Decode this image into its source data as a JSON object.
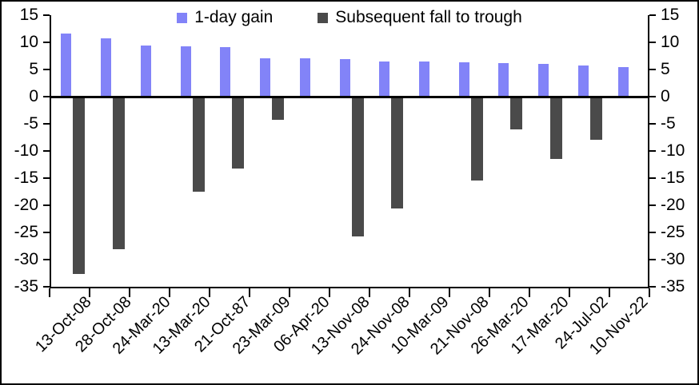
{
  "chart_data": {
    "type": "bar",
    "title": "",
    "xlabel": "",
    "ylabel": "",
    "categories": [
      "13-Oct-08",
      "28-Oct-08",
      "24-Mar-20",
      "13-Mar-20",
      "21-Oct-87",
      "23-Mar-09",
      "06-Apr-20",
      "13-Nov-08",
      "24-Nov-08",
      "10-Mar-09",
      "21-Nov-08",
      "26-Mar-20",
      "17-Mar-20",
      "24-Jul-02",
      "10-Nov-22"
    ],
    "series": [
      {
        "name": "1-day gain",
        "color": "#8283F8",
        "values": [
          11.6,
          10.8,
          9.4,
          9.3,
          9.1,
          7.1,
          7.0,
          6.9,
          6.5,
          6.4,
          6.3,
          6.2,
          6.0,
          5.7,
          5.5
        ]
      },
      {
        "name": "Subsequent fall to trough",
        "color": "#4A4A4A",
        "values": [
          -32.6,
          -28.1,
          null,
          -17.5,
          -13.3,
          -4.2,
          null,
          -25.8,
          -20.6,
          null,
          -15.4,
          -6.1,
          -11.5,
          -7.9,
          null
        ]
      }
    ],
    "ylim": [
      -35,
      15
    ],
    "yticks": [
      15,
      10,
      5,
      0,
      -5,
      -10,
      -15,
      -20,
      -25,
      -30,
      -35
    ],
    "y_axis_sides": [
      "left",
      "right"
    ],
    "grid": false,
    "legend_position": "top-center",
    "axis_color": "#000000",
    "background_color": "#FFFFFF"
  }
}
